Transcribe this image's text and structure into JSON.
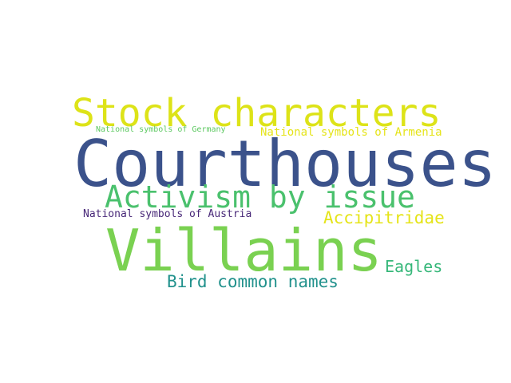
{
  "cloud": {
    "words": [
      {
        "id": "stock",
        "text": "Stock characters",
        "color": "#dde318"
      },
      {
        "id": "ger",
        "text": "National symbols of Germany",
        "color": "#5ec962"
      },
      {
        "id": "arm",
        "text": "National symbols of Armenia",
        "color": "#e5e419"
      },
      {
        "id": "court",
        "text": "Courthouses",
        "color": "#3b528b"
      },
      {
        "id": "activism",
        "text": "Activism by issue",
        "color": "#4ac16d"
      },
      {
        "id": "aus",
        "text": "National symbols of Austria",
        "color": "#482878"
      },
      {
        "id": "accip",
        "text": "Accipitridae",
        "color": "#e5e419"
      },
      {
        "id": "villains",
        "text": "Villains",
        "color": "#7ad151"
      },
      {
        "id": "eagles",
        "text": "Eagles",
        "color": "#35b779"
      },
      {
        "id": "bird",
        "text": "Bird common names",
        "color": "#21918c"
      }
    ]
  }
}
